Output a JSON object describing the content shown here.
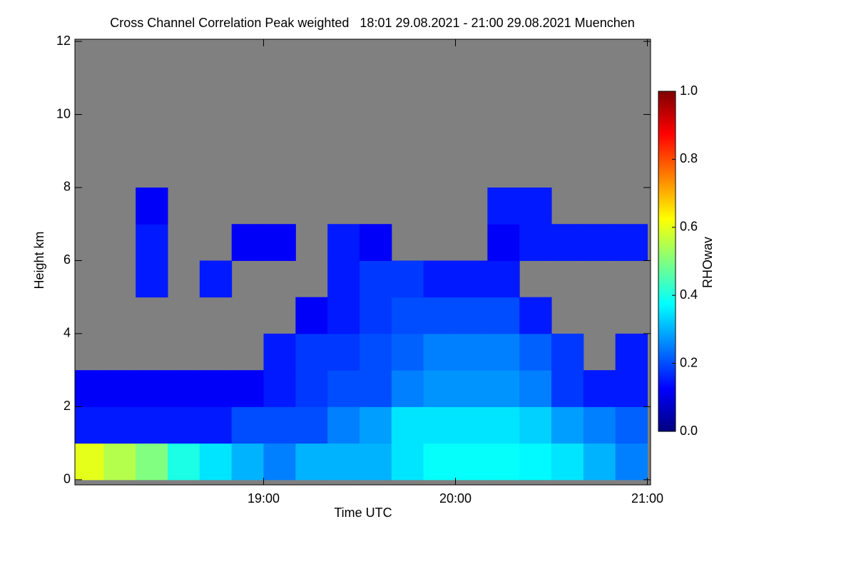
{
  "chart_data": {
    "type": "heatmap",
    "title": "Cross Channel Correlation Peak weighted   18:01 29.08.2021 - 21:00 29.08.2021 Muenchen",
    "x_label": "Time UTC",
    "y_label": "Height km",
    "colorbar_label": "RHOwav",
    "xlim": [
      1,
      181
    ],
    "xticks": [
      {
        "value": 60,
        "label": "19:00"
      },
      {
        "value": 120,
        "label": "20:00"
      },
      {
        "value": 180,
        "label": "21:00"
      }
    ],
    "ylim": [
      -0.14,
      12.06
    ],
    "yticks": [
      0,
      2,
      4,
      6,
      8,
      10,
      12
    ],
    "x": [
      5,
      15,
      25,
      35,
      45,
      55,
      65,
      75,
      85,
      95,
      105,
      115,
      125,
      135,
      145,
      155,
      165,
      175
    ],
    "x_cell": 10,
    "y": [
      0.5,
      1.5,
      2.5,
      3.5,
      4.5,
      5.5,
      6.5,
      7.5,
      8.5,
      9.5,
      10.5,
      11.5
    ],
    "y_cell": 1,
    "z": [
      [
        0.6,
        0.55,
        0.5,
        0.4,
        0.35,
        0.3,
        0.25,
        0.3,
        0.3,
        0.3,
        0.35,
        0.38,
        0.38,
        0.38,
        0.37,
        0.35,
        0.3,
        0.25
      ],
      [
        0.15,
        0.15,
        0.15,
        0.15,
        0.15,
        0.2,
        0.2,
        0.2,
        0.25,
        0.28,
        0.35,
        0.35,
        0.35,
        0.35,
        0.33,
        0.28,
        0.25,
        0.22
      ],
      [
        0.12,
        0.12,
        0.12,
        0.12,
        0.12,
        0.12,
        0.15,
        0.18,
        0.2,
        0.2,
        0.25,
        0.27,
        0.27,
        0.27,
        0.25,
        0.18,
        0.15,
        0.15
      ],
      [
        null,
        null,
        null,
        null,
        null,
        null,
        0.15,
        0.18,
        0.18,
        0.2,
        0.22,
        0.25,
        0.25,
        0.25,
        0.22,
        0.18,
        null,
        0.15
      ],
      [
        null,
        null,
        null,
        null,
        null,
        null,
        null,
        0.12,
        0.15,
        0.18,
        0.2,
        0.2,
        0.2,
        0.2,
        0.15,
        null,
        null,
        null
      ],
      [
        null,
        null,
        0.15,
        null,
        0.15,
        null,
        null,
        null,
        0.15,
        0.18,
        0.18,
        0.15,
        0.15,
        0.15,
        null,
        null,
        null,
        null
      ],
      [
        null,
        null,
        0.15,
        null,
        null,
        0.12,
        0.12,
        null,
        0.15,
        0.12,
        null,
        null,
        null,
        0.12,
        0.15,
        0.15,
        0.15,
        0.15
      ],
      [
        null,
        null,
        0.12,
        null,
        null,
        null,
        null,
        null,
        null,
        null,
        null,
        null,
        null,
        0.15,
        0.15,
        null,
        null,
        null
      ],
      [
        null,
        null,
        null,
        null,
        null,
        null,
        null,
        null,
        null,
        null,
        null,
        null,
        null,
        null,
        null,
        null,
        null,
        null
      ],
      [
        null,
        null,
        null,
        null,
        null,
        null,
        null,
        null,
        null,
        null,
        null,
        null,
        null,
        null,
        null,
        null,
        null,
        null
      ],
      [
        null,
        null,
        null,
        null,
        null,
        null,
        null,
        null,
        null,
        null,
        null,
        null,
        null,
        null,
        null,
        null,
        null,
        null
      ],
      [
        null,
        null,
        null,
        null,
        null,
        null,
        null,
        null,
        null,
        null,
        null,
        null,
        null,
        null,
        null,
        null,
        null,
        null
      ]
    ],
    "nodata_color": "#808080",
    "clim": [
      0,
      1
    ],
    "cticks": [
      {
        "value": 0,
        "label": "0.0"
      },
      {
        "value": 0.2,
        "label": "0.2"
      },
      {
        "value": 0.4,
        "label": "0.4"
      },
      {
        "value": 0.6,
        "label": "0.6"
      },
      {
        "value": 0.8,
        "label": "0.8"
      },
      {
        "value": 1,
        "label": "1.0"
      }
    ],
    "colorscale": [
      [
        0,
        "#00007f"
      ],
      [
        0.125,
        "#0000ff"
      ],
      [
        0.375,
        "#00ffff"
      ],
      [
        0.625,
        "#ffff00"
      ],
      [
        0.875,
        "#ff0000"
      ],
      [
        1,
        "#7f0000"
      ]
    ]
  }
}
